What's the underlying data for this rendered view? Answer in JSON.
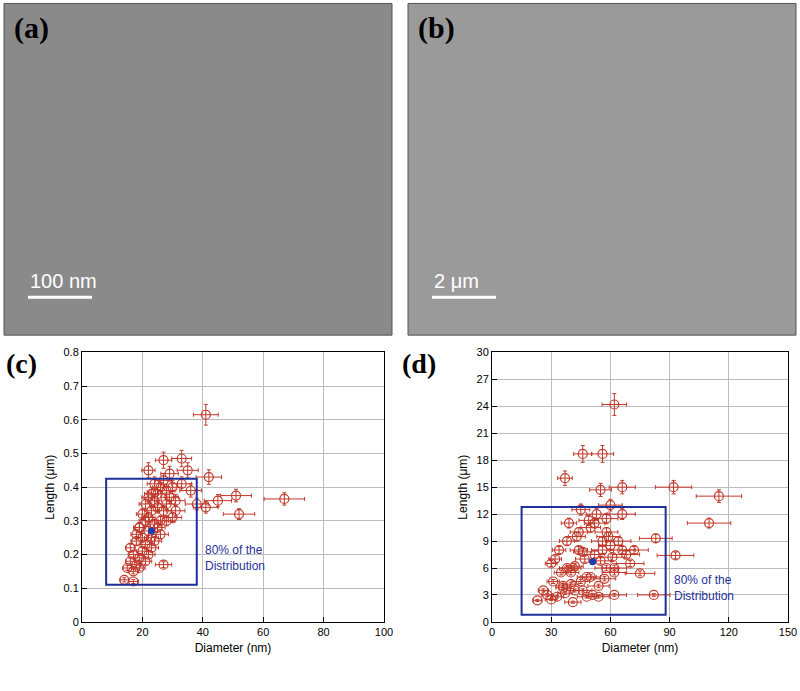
{
  "images": [
    {
      "label": "(a)",
      "scale_bar": "100 nm"
    },
    {
      "label": "(b)",
      "scale_bar": "2 μm"
    }
  ],
  "chart_data": [
    {
      "type": "scatter",
      "title": "(c)",
      "x_label": "Diameter (nm)",
      "y_label": "Length (μm)",
      "marker": "circle-open",
      "color": "#c0392b",
      "grid": true,
      "xlim": [
        0,
        100
      ],
      "xticks": [
        0,
        20,
        40,
        60,
        80,
        100
      ],
      "ylim": [
        0,
        0.8
      ],
      "yticks": [
        0,
        0.1,
        0.2,
        0.3,
        0.4,
        0.5,
        0.6,
        0.7,
        0.8
      ],
      "x": [
        14,
        17,
        15,
        16,
        17,
        18,
        16,
        18,
        19,
        17,
        20,
        18,
        21,
        19,
        20,
        22,
        21,
        23,
        20,
        22,
        24,
        23,
        19,
        21,
        25,
        22,
        24,
        26,
        23,
        25,
        27,
        24,
        26,
        28,
        22,
        25,
        27,
        29,
        23,
        26,
        28,
        30,
        24,
        27,
        31,
        29,
        33,
        35,
        22,
        28,
        33,
        30,
        38,
        41,
        42,
        45,
        51,
        52,
        67,
        41,
        27,
        21,
        19,
        31,
        36
      ],
      "values": [
        0.125,
        0.12,
        0.16,
        0.18,
        0.2,
        0.17,
        0.22,
        0.24,
        0.19,
        0.15,
        0.21,
        0.26,
        0.18,
        0.28,
        0.25,
        0.2,
        0.3,
        0.22,
        0.32,
        0.27,
        0.24,
        0.33,
        0.16,
        0.35,
        0.28,
        0.31,
        0.36,
        0.3,
        0.25,
        0.38,
        0.33,
        0.29,
        0.4,
        0.35,
        0.45,
        0.34,
        0.42,
        0.37,
        0.38,
        0.26,
        0.39,
        0.31,
        0.41,
        0.48,
        0.36,
        0.44,
        0.485,
        0.45,
        0.37,
        0.3,
        0.41,
        0.4,
        0.35,
        0.34,
        0.43,
        0.36,
        0.375,
        0.32,
        0.365,
        0.615,
        0.17,
        0.23,
        0.28,
        0.33,
        0.39
      ],
      "x_error_percent": 10,
      "y_error_percent": 5,
      "mean": {
        "x": 23,
        "y": 0.27,
        "color": "#1a3bb3"
      },
      "box": {
        "x": [
          8,
          38
        ],
        "y": [
          0.11,
          0.425
        ],
        "color": "#1f2f99",
        "text": [
          "80% of the",
          "Distribution"
        ]
      }
    },
    {
      "type": "scatter",
      "title": "(d)",
      "x_label": "Diameter (nm)",
      "y_label": "Length (μm)",
      "marker": "circle-open",
      "color": "#c0392b",
      "grid": true,
      "xlim": [
        0,
        150
      ],
      "xticks": [
        0,
        30,
        60,
        90,
        120,
        150
      ],
      "ylim": [
        0,
        30
      ],
      "yticks": [
        0,
        3,
        6,
        9,
        12,
        15,
        18,
        21,
        24,
        27,
        30
      ],
      "x": [
        23,
        26,
        28,
        30,
        31,
        33,
        35,
        32,
        36,
        38,
        40,
        42,
        44,
        46,
        48,
        50,
        52,
        54,
        56,
        58,
        60,
        62,
        30,
        34,
        37,
        39,
        41,
        43,
        45,
        47,
        49,
        51,
        53,
        55,
        57,
        61,
        64,
        66,
        70,
        72,
        36,
        40,
        44,
        48,
        52,
        56,
        62,
        68,
        38,
        42,
        46,
        50,
        54,
        58,
        62,
        66,
        37,
        46,
        56,
        62,
        55,
        66,
        92,
        115,
        110,
        93,
        83,
        75,
        82,
        60,
        58,
        59,
        45,
        41
      ],
      "values": [
        2.4,
        3.5,
        3,
        6.5,
        4.5,
        2.8,
        5.5,
        7,
        3.8,
        9,
        4.2,
        6.2,
        8,
        3.5,
        5,
        10.5,
        7.5,
        4,
        9,
        6,
        8.5,
        5.5,
        2.5,
        8,
        3.2,
        11,
        6,
        9.5,
        4.5,
        7,
        11.3,
        3,
        12,
        6.8,
        4.8,
        7.2,
        9,
        8,
        6.5,
        8,
        4,
        5.5,
        10,
        2.8,
        11,
        8,
        3,
        7.5,
        6,
        3.5,
        7.8,
        5,
        2.8,
        10,
        6,
        12,
        16,
        18.7,
        18.7,
        24.2,
        14.7,
        15,
        15,
        14,
        11,
        7.4,
        9.3,
        5.4,
        3,
        13,
        11.5,
        9.5,
        12.5,
        2.2
      ],
      "x_error_percent": 10,
      "y_error_percent": 5,
      "mean": {
        "x": 51,
        "y": 6.7,
        "color": "#1a3bb3"
      },
      "box": {
        "x": [
          15,
          88
        ],
        "y": [
          0.8,
          12.8
        ],
        "color": "#1f2f99",
        "text": [
          "80% of the",
          "Distribution"
        ]
      }
    }
  ]
}
